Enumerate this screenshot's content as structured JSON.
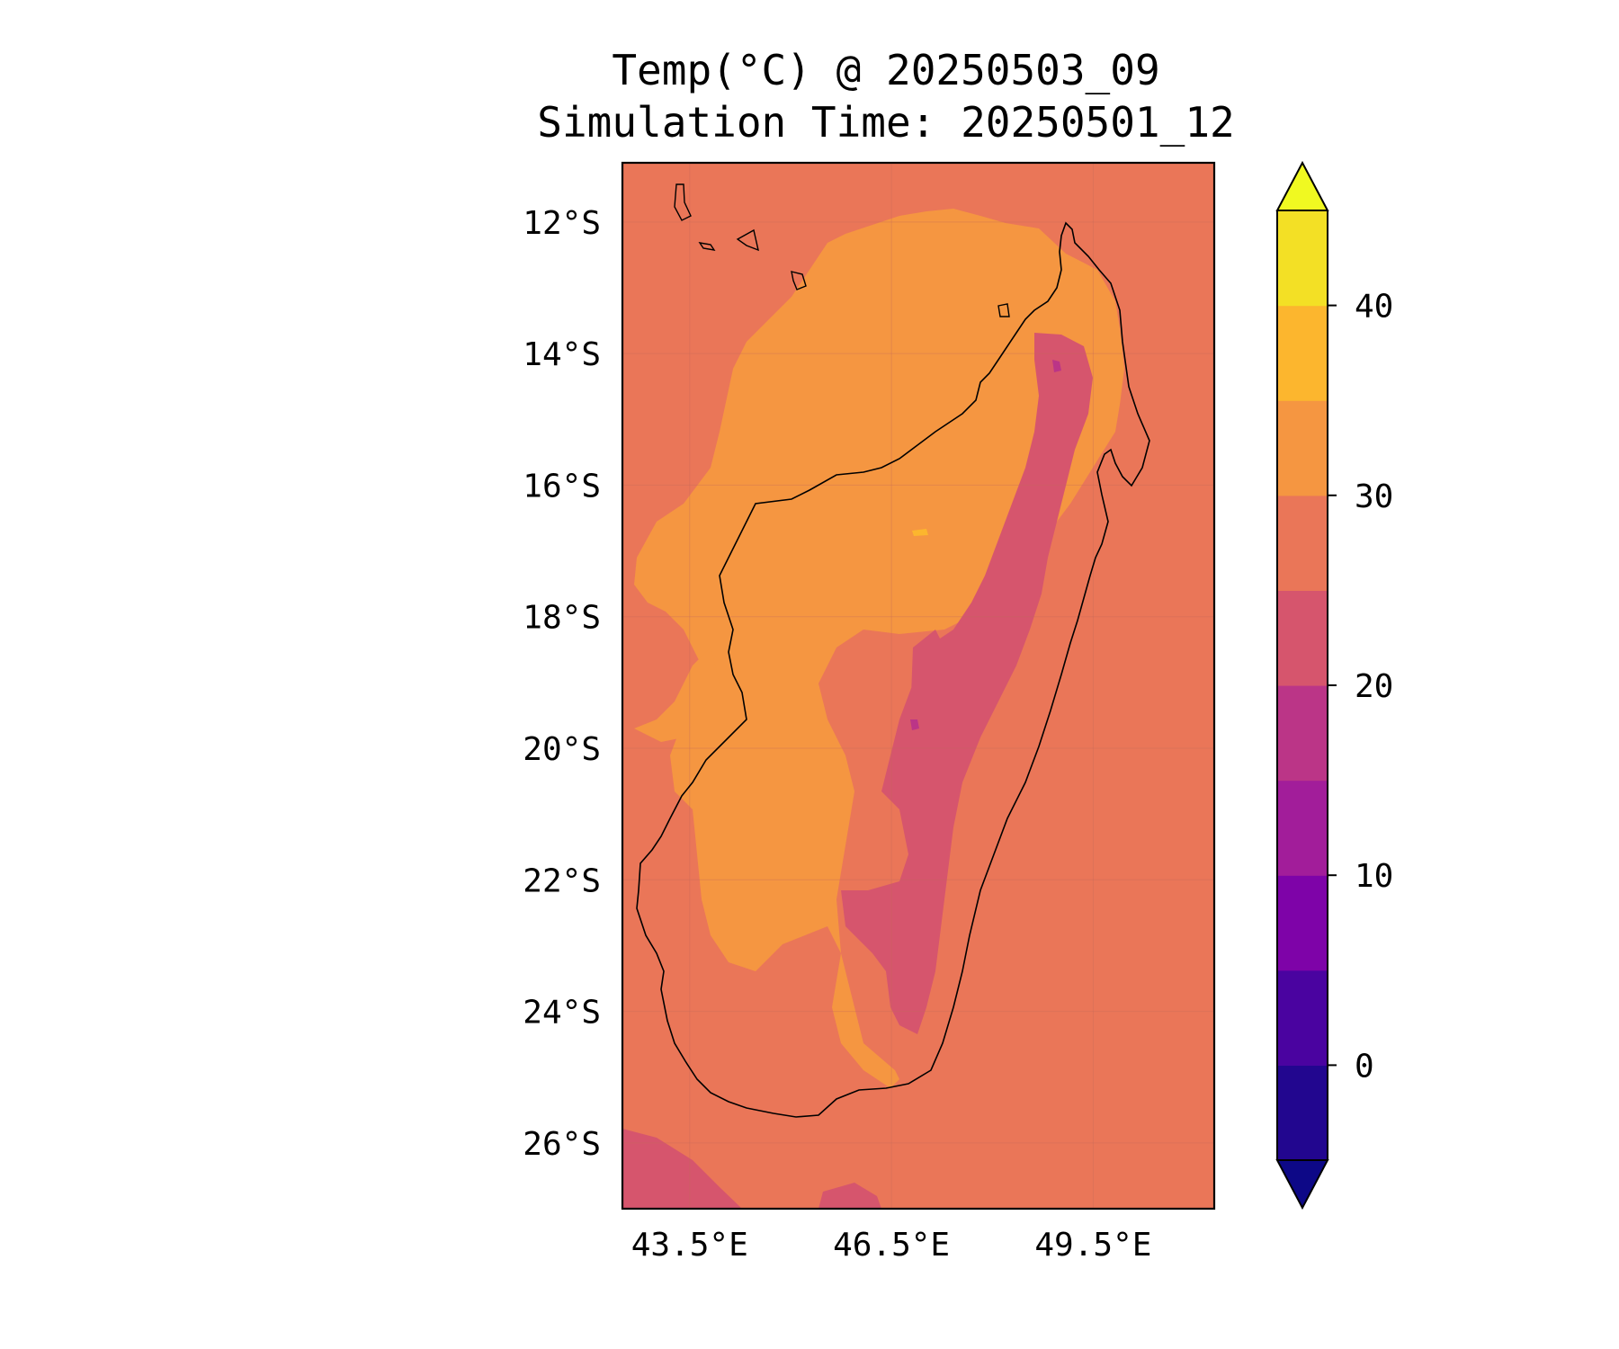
{
  "title": {
    "line1": "Temp(°C) @ 20250503_09",
    "line2": "Simulation Time: 20250501_12"
  },
  "map": {
    "extent_lon": [
      42.5,
      51.3
    ],
    "extent_lat": [
      -27.0,
      -11.1
    ],
    "lat_ticks": [
      {
        "value": -12,
        "label": "12°S"
      },
      {
        "value": -14,
        "label": "14°S"
      },
      {
        "value": -16,
        "label": "16°S"
      },
      {
        "value": -18,
        "label": "18°S"
      },
      {
        "value": -20,
        "label": "20°S"
      },
      {
        "value": -22,
        "label": "22°S"
      },
      {
        "value": -24,
        "label": "24°S"
      },
      {
        "value": -26,
        "label": "26°S"
      }
    ],
    "lon_ticks": [
      {
        "value": 43.5,
        "label": "43.5°E"
      },
      {
        "value": 46.5,
        "label": "46.5°E"
      },
      {
        "value": 49.5,
        "label": "49.5°E"
      }
    ],
    "background_color": "#ea7658",
    "field_colors": {
      "band_25_30": "#ea7658",
      "band_30_35": "#f59641",
      "band_20_25": "#d6556d",
      "band_15_20": "#bb3587",
      "band_35_40": "#fcb62e"
    }
  },
  "colorbar": {
    "min": -5,
    "max": 45,
    "extend": "both",
    "levels": [
      -5,
      0,
      5,
      10,
      15,
      20,
      25,
      30,
      35,
      40,
      45
    ],
    "colors": [
      "#22068f",
      "#4a03a0",
      "#7e03a8",
      "#a21d9a",
      "#bb3587",
      "#d6556d",
      "#ea7658",
      "#f59641",
      "#fcb62e",
      "#f3e025"
    ],
    "under_color": "#0d0887",
    "over_color": "#f0f921",
    "ticks": [
      {
        "value": 0,
        "label": "0"
      },
      {
        "value": 10,
        "label": "10"
      },
      {
        "value": 20,
        "label": "20"
      },
      {
        "value": 30,
        "label": "30"
      },
      {
        "value": 40,
        "label": "40"
      }
    ]
  }
}
